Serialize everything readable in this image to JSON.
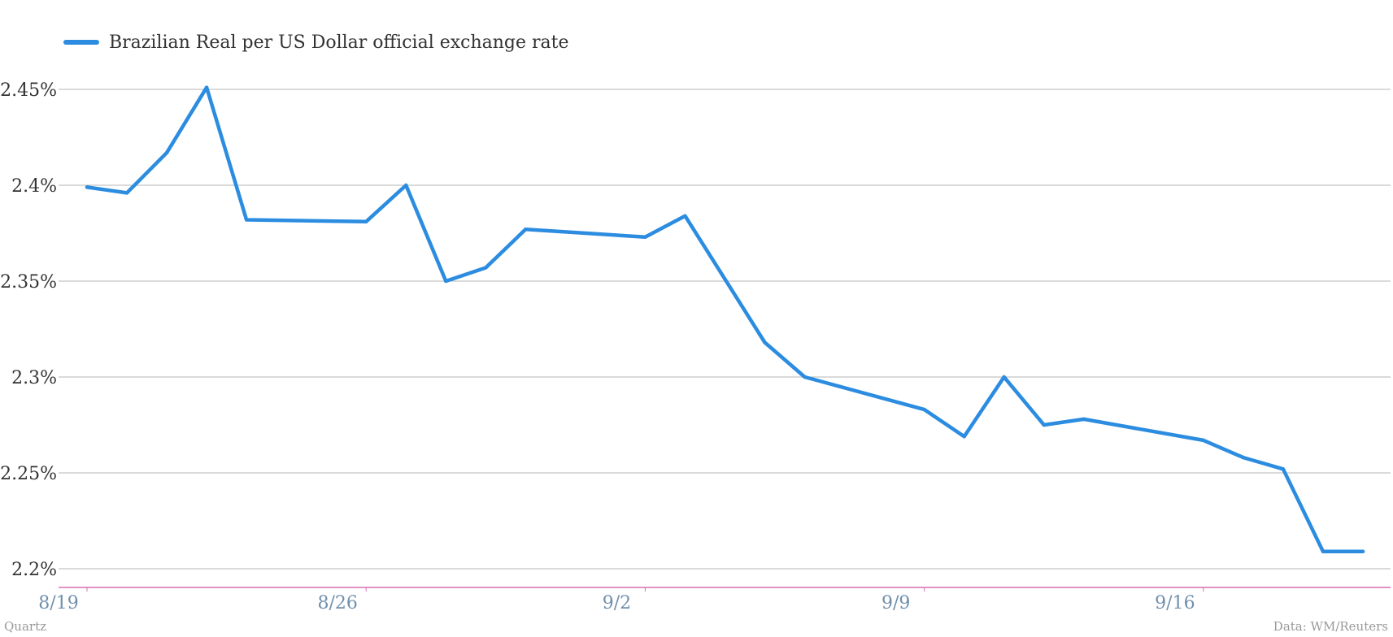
{
  "chart_data": {
    "type": "line",
    "title": "",
    "xlabel": "",
    "ylabel": "",
    "x": [
      "8/19",
      "8/20",
      "8/21",
      "8/22",
      "8/23",
      "8/26",
      "8/27",
      "8/28",
      "8/29",
      "8/30",
      "9/2",
      "9/3",
      "9/4",
      "9/5",
      "9/6",
      "9/9",
      "9/10",
      "9/11",
      "9/12",
      "9/13",
      "9/16",
      "9/17",
      "9/18",
      "9/19",
      "9/20"
    ],
    "x_index": [
      0,
      1,
      2,
      3,
      4,
      7,
      8,
      9,
      10,
      11,
      14,
      15,
      16,
      17,
      18,
      21,
      22,
      23,
      24,
      25,
      28,
      29,
      30,
      31,
      32
    ],
    "series": [
      {
        "name": "Brazilian Real per US Dollar official exchange rate",
        "color": "#2b8ce0",
        "values": [
          2.399,
          2.396,
          2.417,
          2.451,
          2.382,
          2.381,
          2.4,
          2.35,
          2.357,
          2.377,
          2.373,
          2.384,
          2.351,
          2.318,
          2.3,
          2.283,
          2.269,
          2.3,
          2.275,
          2.278,
          2.267,
          2.258,
          2.252,
          2.209,
          2.209
        ]
      }
    ],
    "x_ticks": [
      {
        "label": "8/19",
        "index": 0
      },
      {
        "label": "8/26",
        "index": 7
      },
      {
        "label": "9/2",
        "index": 14
      },
      {
        "label": "9/9",
        "index": 21
      },
      {
        "label": "9/16",
        "index": 28
      }
    ],
    "y_ticks": [
      {
        "value": 2.45,
        "label": "2.45%"
      },
      {
        "value": 2.4,
        "label": "2.4%"
      },
      {
        "value": 2.35,
        "label": "2.35%"
      },
      {
        "value": 2.3,
        "label": "2.3%"
      },
      {
        "value": 2.25,
        "label": "2.25%"
      },
      {
        "value": 2.2,
        "label": "2.2%"
      }
    ],
    "ylim": [
      2.2,
      2.45
    ],
    "grid": true,
    "legend_position": "top-left",
    "grid_color": "#b5b5b5",
    "axis_color": "#d86fb2"
  },
  "legend": {
    "label": "Brazilian Real per US Dollar official exchange rate"
  },
  "footer": {
    "source_left": "Quartz",
    "source_right": "Data: WM/Reuters"
  }
}
